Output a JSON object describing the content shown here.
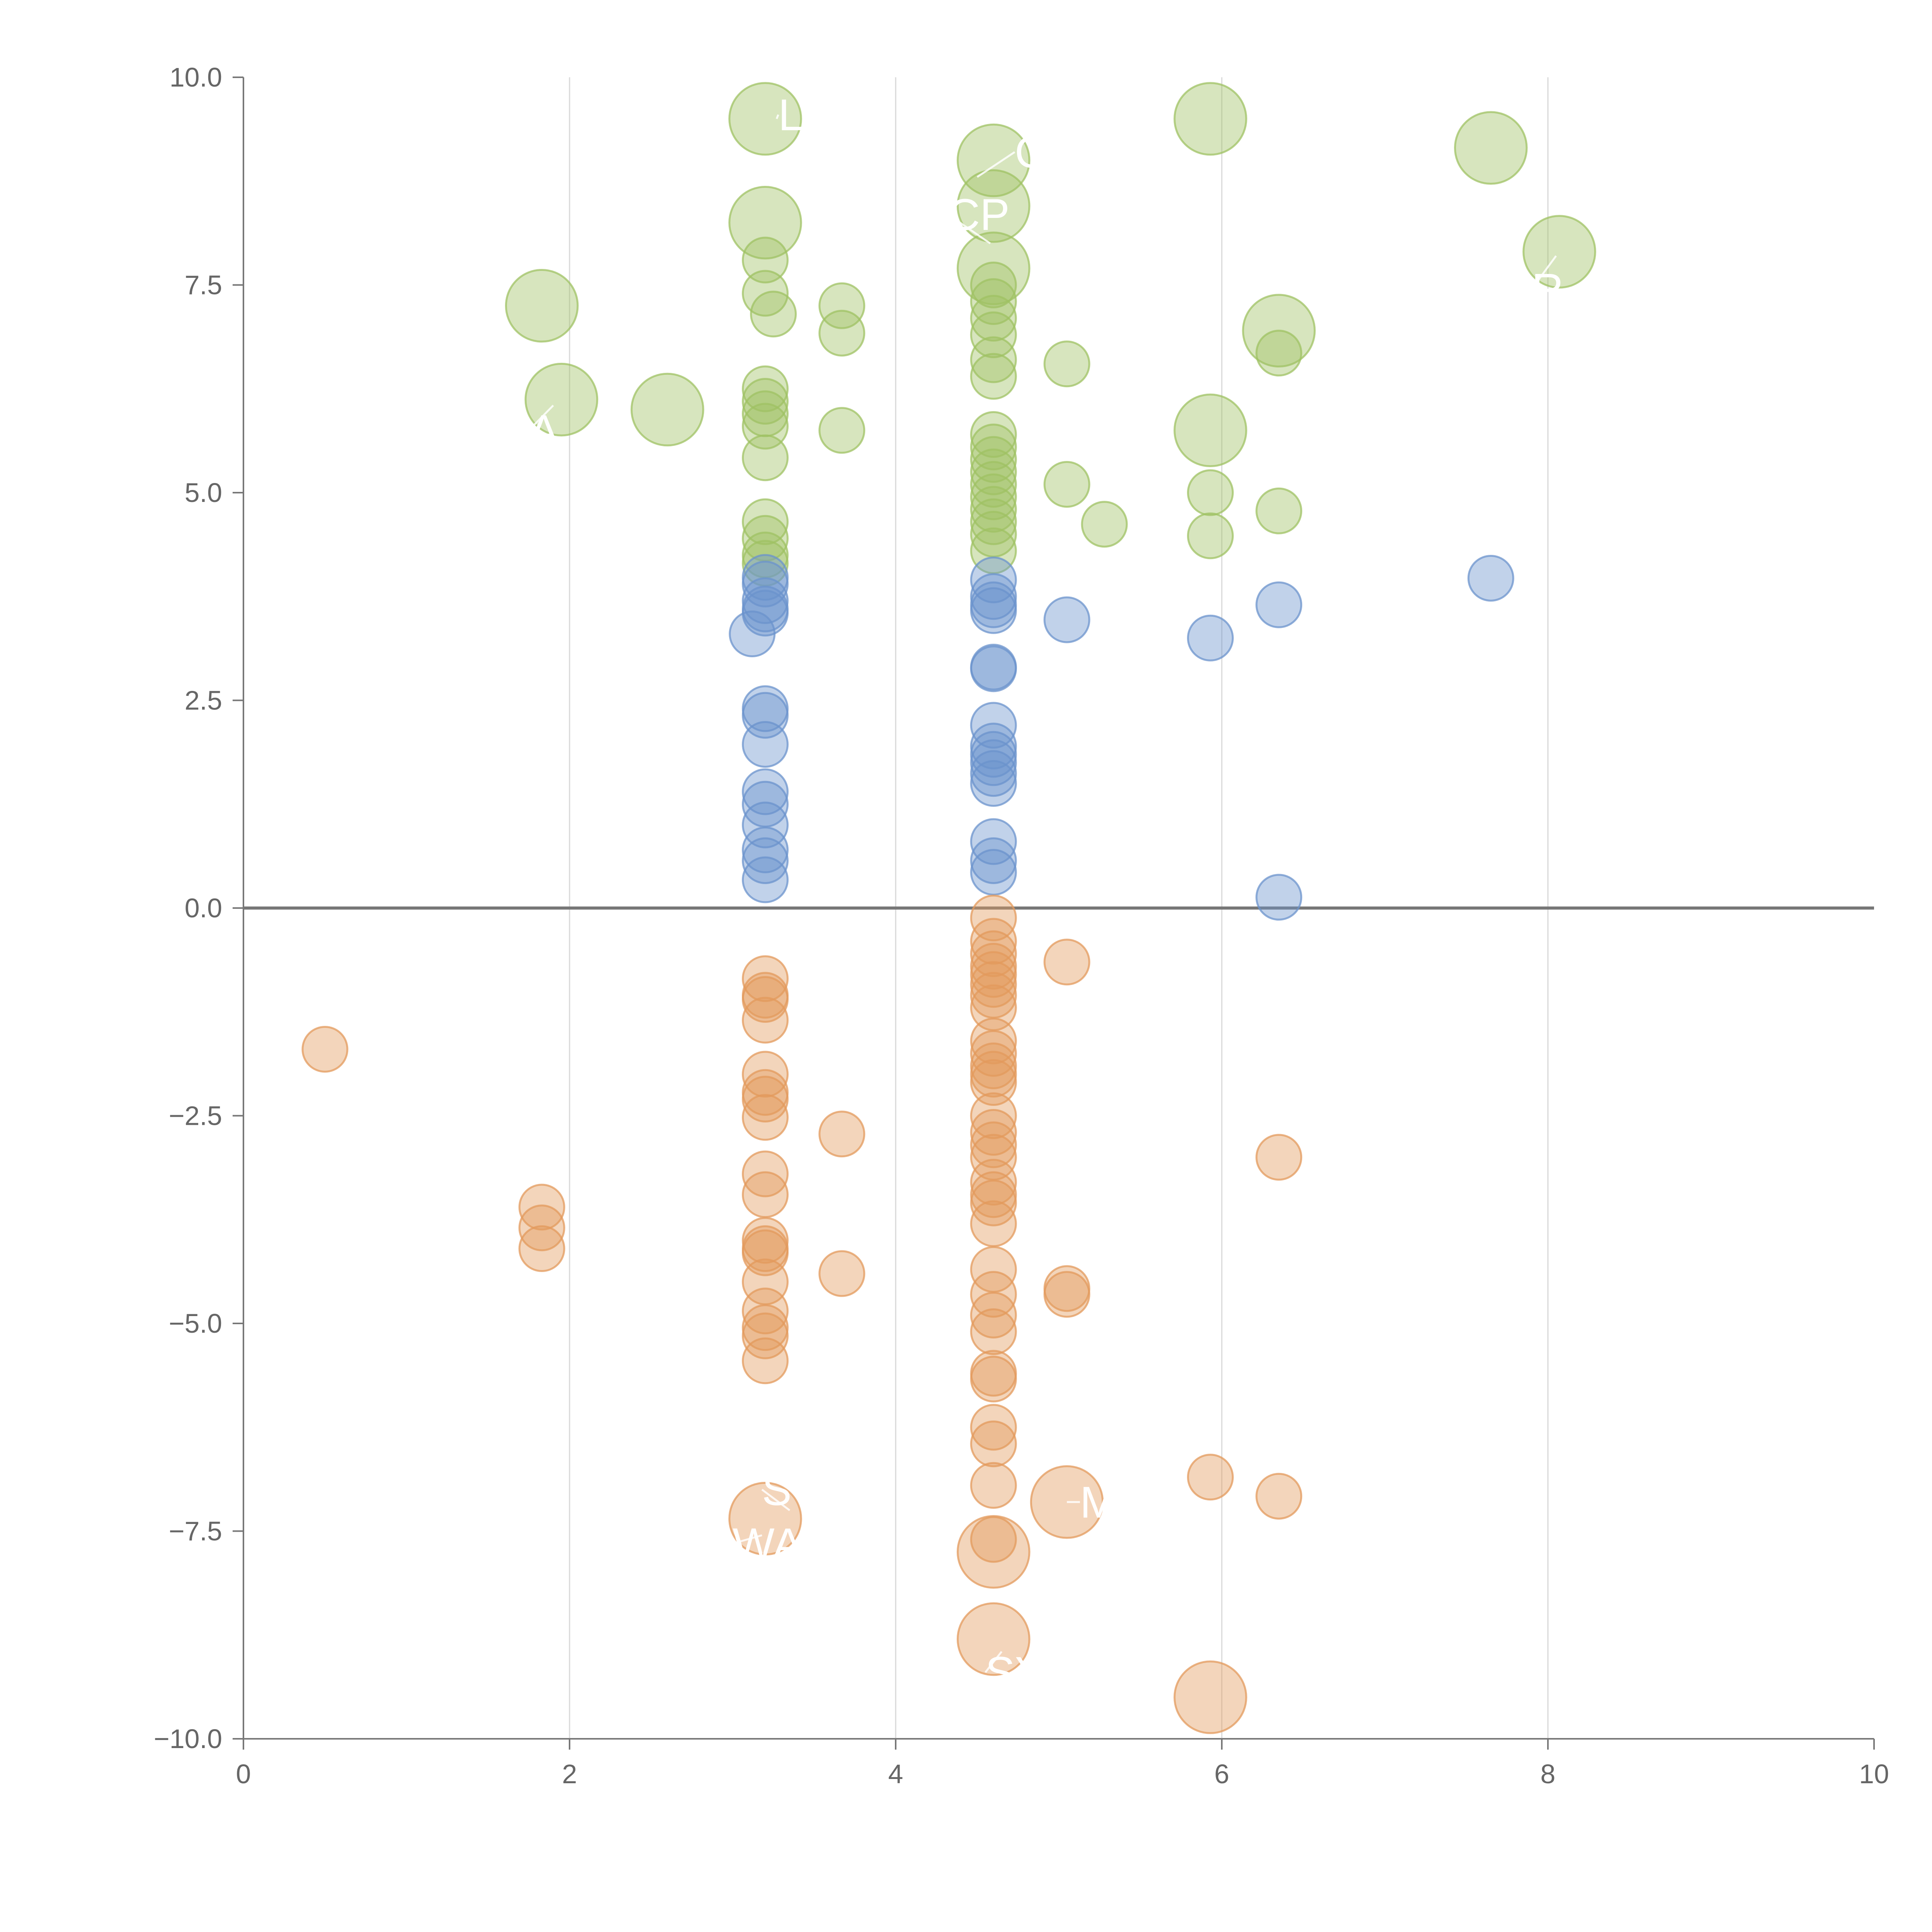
{
  "chart_data": {
    "type": "scatter",
    "title": "",
    "xlabel": "",
    "ylabel": "",
    "xlim": [
      0,
      10
    ],
    "ylim": [
      -10,
      10
    ],
    "x_ticks": [
      "0",
      "2",
      "4",
      "6",
      "8",
      "10"
    ],
    "y_ticks": [
      "10.0",
      "7.5",
      "5.0",
      "2.5",
      "0.0",
      "−2.5",
      "−5.0",
      "−7.5",
      "−10.0"
    ],
    "grid": "vertical",
    "reference_line_y": 0,
    "colors": {
      "high": "#9fc263",
      "mid": "#6b93cc",
      "low": "#e39a5c"
    },
    "series": [
      {
        "color_key": "high",
        "points": [
          [
            3.2,
            9.5,
            1.6
          ],
          [
            5.93,
            9.5,
            1.6
          ],
          [
            4.6,
            9.0,
            1.6
          ],
          [
            7.65,
            9.15,
            1.6
          ],
          [
            3.2,
            8.25,
            1.6
          ],
          [
            4.6,
            8.45,
            1.6
          ],
          [
            8.07,
            7.9,
            1.6
          ],
          [
            4.6,
            7.7,
            1.6
          ],
          [
            1.83,
            7.25,
            1.6
          ],
          [
            6.35,
            6.95,
            1.6
          ],
          [
            1.95,
            6.12,
            1.6
          ],
          [
            2.6,
            6.0,
            1.6
          ],
          [
            5.93,
            5.75,
            1.6
          ],
          [
            3.2,
            7.8,
            1
          ],
          [
            3.2,
            7.4,
            1
          ],
          [
            3.25,
            7.15,
            1
          ],
          [
            3.67,
            7.25,
            1
          ],
          [
            3.67,
            6.92,
            1
          ],
          [
            4.6,
            7.5,
            1
          ],
          [
            4.6,
            7.3,
            1
          ],
          [
            4.6,
            7.1,
            1
          ],
          [
            4.6,
            6.9,
            1
          ],
          [
            4.6,
            6.6,
            1
          ],
          [
            4.6,
            6.4,
            1
          ],
          [
            5.05,
            6.55,
            1
          ],
          [
            6.35,
            6.68,
            1
          ],
          [
            3.2,
            6.25,
            1
          ],
          [
            3.2,
            6.1,
            1
          ],
          [
            3.2,
            5.95,
            1
          ],
          [
            3.2,
            5.8,
            1
          ],
          [
            3.2,
            5.42,
            1
          ],
          [
            3.67,
            5.75,
            1
          ],
          [
            4.6,
            5.7,
            1
          ],
          [
            4.6,
            5.55,
            1
          ],
          [
            4.6,
            5.4,
            1
          ],
          [
            4.6,
            5.25,
            1
          ],
          [
            4.6,
            5.1,
            1
          ],
          [
            4.6,
            4.95,
            1
          ],
          [
            4.6,
            4.8,
            1
          ],
          [
            4.6,
            4.65,
            1
          ],
          [
            4.6,
            4.5,
            1
          ],
          [
            4.6,
            4.3,
            1
          ],
          [
            5.05,
            5.1,
            1
          ],
          [
            5.28,
            4.62,
            1
          ],
          [
            5.93,
            5.0,
            1
          ],
          [
            5.93,
            4.48,
            1
          ],
          [
            6.35,
            4.78,
            1
          ],
          [
            3.2,
            4.65,
            1
          ],
          [
            3.2,
            4.45,
            1
          ],
          [
            3.2,
            4.25,
            1
          ],
          [
            3.2,
            4.15,
            1
          ]
        ]
      },
      {
        "color_key": "mid",
        "points": [
          [
            3.2,
            3.98,
            1
          ],
          [
            3.2,
            3.9,
            1
          ],
          [
            3.2,
            3.7,
            1
          ],
          [
            3.2,
            3.6,
            1
          ],
          [
            3.2,
            3.55,
            1
          ],
          [
            3.12,
            3.3,
            1
          ],
          [
            4.6,
            3.95,
            1
          ],
          [
            4.6,
            3.75,
            1
          ],
          [
            4.6,
            3.65,
            1
          ],
          [
            4.6,
            3.58,
            1
          ],
          [
            5.05,
            3.47,
            1
          ],
          [
            5.93,
            3.25,
            1
          ],
          [
            6.35,
            3.65,
            1
          ],
          [
            7.65,
            3.97,
            1
          ],
          [
            4.6,
            2.9,
            1
          ],
          [
            4.6,
            2.88,
            1
          ],
          [
            3.2,
            2.4,
            1
          ],
          [
            3.2,
            2.32,
            1
          ],
          [
            3.2,
            1.97,
            1
          ],
          [
            4.6,
            2.2,
            1
          ],
          [
            4.6,
            1.95,
            1
          ],
          [
            4.6,
            1.85,
            1
          ],
          [
            4.6,
            1.75,
            1
          ],
          [
            4.6,
            1.62,
            1
          ],
          [
            4.6,
            1.5,
            1
          ],
          [
            3.2,
            1.4,
            1
          ],
          [
            3.2,
            1.25,
            1
          ],
          [
            3.2,
            1.0,
            1
          ],
          [
            3.2,
            0.7,
            1
          ],
          [
            3.2,
            0.57,
            1
          ],
          [
            3.2,
            0.34,
            1
          ],
          [
            4.6,
            0.8,
            1
          ],
          [
            4.6,
            0.57,
            1
          ],
          [
            4.6,
            0.43,
            1
          ],
          [
            6.35,
            0.13,
            1
          ]
        ]
      },
      {
        "color_key": "low",
        "points": [
          [
            4.6,
            -0.12,
            1
          ],
          [
            4.6,
            -0.4,
            1
          ],
          [
            4.6,
            -0.55,
            1
          ],
          [
            4.6,
            -0.7,
            1
          ],
          [
            4.6,
            -0.8,
            1
          ],
          [
            4.6,
            -0.92,
            1
          ],
          [
            4.6,
            -1.05,
            1
          ],
          [
            4.6,
            -1.2,
            1
          ],
          [
            5.05,
            -0.65,
            1
          ],
          [
            3.2,
            -0.85,
            1
          ],
          [
            3.2,
            -1.05,
            1
          ],
          [
            3.2,
            -1.1,
            1
          ],
          [
            3.2,
            -1.35,
            1
          ],
          [
            0.5,
            -1.7,
            1
          ],
          [
            3.2,
            -2.0,
            1
          ],
          [
            3.2,
            -2.22,
            1
          ],
          [
            3.2,
            -2.3,
            1
          ],
          [
            3.2,
            -2.52,
            1
          ],
          [
            3.67,
            -2.72,
            1
          ],
          [
            4.6,
            -1.6,
            1
          ],
          [
            4.6,
            -1.75,
            1
          ],
          [
            4.6,
            -1.9,
            1
          ],
          [
            4.6,
            -2.0,
            1
          ],
          [
            4.6,
            -2.1,
            1
          ],
          [
            4.6,
            -2.5,
            1
          ],
          [
            4.6,
            -2.7,
            1
          ],
          [
            4.6,
            -2.85,
            1
          ],
          [
            4.6,
            -3.0,
            1
          ],
          [
            6.35,
            -3.0,
            1
          ],
          [
            3.2,
            -3.2,
            1
          ],
          [
            3.2,
            -3.45,
            1
          ],
          [
            3.2,
            -4.0,
            1
          ],
          [
            3.2,
            -4.1,
            1
          ],
          [
            3.2,
            -4.15,
            1
          ],
          [
            3.2,
            -4.5,
            1
          ],
          [
            3.2,
            -4.85,
            1
          ],
          [
            3.2,
            -5.05,
            1
          ],
          [
            3.2,
            -5.15,
            1
          ],
          [
            3.2,
            -5.45,
            1
          ],
          [
            1.83,
            -3.6,
            1
          ],
          [
            1.83,
            -3.85,
            1
          ],
          [
            1.83,
            -4.1,
            1
          ],
          [
            3.67,
            -4.4,
            1
          ],
          [
            4.6,
            -3.3,
            1
          ],
          [
            4.6,
            -3.45,
            1
          ],
          [
            4.6,
            -3.55,
            1
          ],
          [
            4.6,
            -3.8,
            1
          ],
          [
            4.6,
            -4.35,
            1
          ],
          [
            4.6,
            -4.65,
            1
          ],
          [
            4.6,
            -4.9,
            1
          ],
          [
            4.6,
            -5.1,
            1
          ],
          [
            4.6,
            -5.6,
            1
          ],
          [
            4.6,
            -5.67,
            1
          ],
          [
            4.6,
            -6.25,
            1
          ],
          [
            4.6,
            -6.45,
            1
          ],
          [
            4.6,
            -6.95,
            1
          ],
          [
            4.6,
            -7.6,
            1
          ],
          [
            5.05,
            -4.58,
            1
          ],
          [
            5.05,
            -4.65,
            1
          ],
          [
            5.93,
            -6.85,
            1
          ],
          [
            6.35,
            -7.08,
            1
          ],
          [
            3.2,
            -7.35,
            1.6
          ],
          [
            5.05,
            -7.15,
            1.6
          ],
          [
            4.6,
            -7.75,
            1.6
          ],
          [
            4.6,
            -8.8,
            1.6
          ],
          [
            5.93,
            -9.5,
            1.6
          ]
        ]
      }
    ],
    "labels": [
      {
        "text": "L",
        "x": 3.28,
        "y": 9.55,
        "lx": 3.27,
        "ly": 9.5
      },
      {
        "text": "C",
        "x": 4.73,
        "y": 9.1,
        "lx": 4.5,
        "ly": 8.8
      },
      {
        "text": "CP",
        "x": 4.32,
        "y": 8.35,
        "lx": 4.58,
        "ly": 8.0
      },
      {
        "text": "R",
        "x": 7.9,
        "y": 7.45,
        "lx": 8.05,
        "ly": 7.85
      },
      {
        "text": "A",
        "x": 1.75,
        "y": 5.75,
        "lx": 1.9,
        "ly": 6.05
      },
      {
        "text": "S",
        "x": 3.18,
        "y": -7.0,
        "lx": 3.35,
        "ly": -7.25
      },
      {
        "text": "WA",
        "x": 3.0,
        "y": -7.65,
        "lx": 3.18,
        "ly": -7.55
      },
      {
        "text": "M",
        "x": 5.13,
        "y": -7.15,
        "lx": 5.05,
        "ly": -7.15
      },
      {
        "text": "SY",
        "x": 4.55,
        "y": -9.2,
        "lx": 4.65,
        "ly": -8.95
      }
    ]
  }
}
